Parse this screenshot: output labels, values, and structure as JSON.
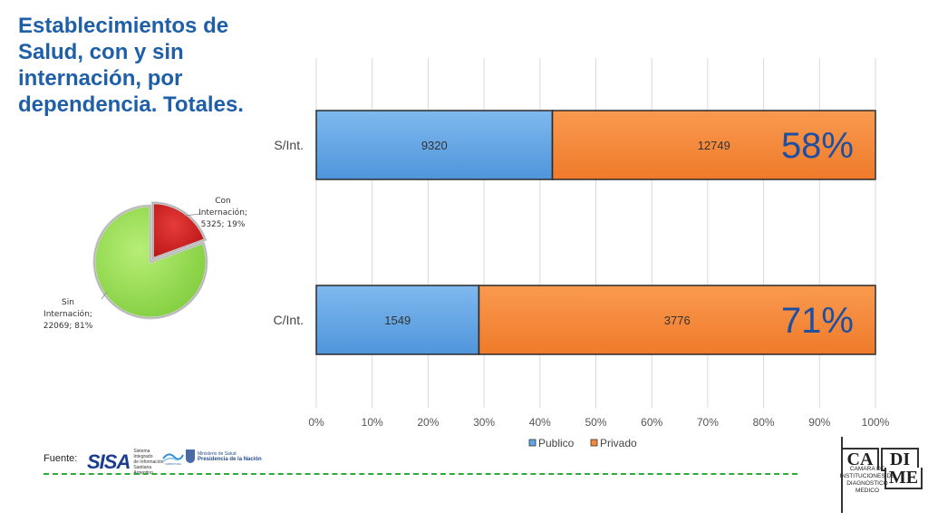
{
  "title_lines": [
    "Establecimientos de",
    "Salud, con y sin",
    "internación, por",
    "dependencia. Totales."
  ],
  "chart_data": [
    {
      "type": "bar",
      "orientation": "horizontal",
      "stacked": "percent",
      "categories": [
        "S/Int.",
        "C/Int."
      ],
      "series": [
        {
          "name": "Publico",
          "values": [
            9320,
            1549
          ],
          "color": "#62a5e6"
        },
        {
          "name": "Privado",
          "values": [
            12749,
            3776
          ],
          "color": "#f5883b"
        }
      ],
      "bar_annotations": [
        "58%",
        "71%"
      ],
      "x_ticks": [
        "0%",
        "10%",
        "20%",
        "30%",
        "40%",
        "50%",
        "60%",
        "70%",
        "80%",
        "90%",
        "100%"
      ],
      "xlim": [
        0,
        100
      ],
      "grid": true,
      "legend_position": "bottom"
    },
    {
      "type": "pie",
      "slices": [
        {
          "label_lines": [
            "Con",
            "Internación;",
            "5325; 19%"
          ],
          "value": 5325,
          "percent": 19,
          "color": "#d21f1f"
        },
        {
          "label_lines": [
            "Sin",
            "Internación;",
            "22069; 81%"
          ],
          "value": 22069,
          "percent": 81,
          "color": "#9fe05a"
        }
      ]
    }
  ],
  "footer": {
    "fuente_label": "Fuente:",
    "sisa_word": "SISA",
    "sisa_sub": [
      "Sistema Integrado",
      "de Información",
      "Sanitaria Argentino"
    ],
    "cobertura_lines": [
      "COBERTURA",
      "UNIVERSAL",
      "DE SALUD"
    ],
    "ministerio_lines": [
      "Ministerio de Salud",
      "Presidencia de la Nación"
    ]
  },
  "cadime": {
    "ca": "CA",
    "di": "DI",
    "me": "ME",
    "text_lines": [
      "CAMARA DE",
      "INSTITUCIONES DE",
      "DIAGNOSTICO",
      "MEDICO"
    ]
  }
}
